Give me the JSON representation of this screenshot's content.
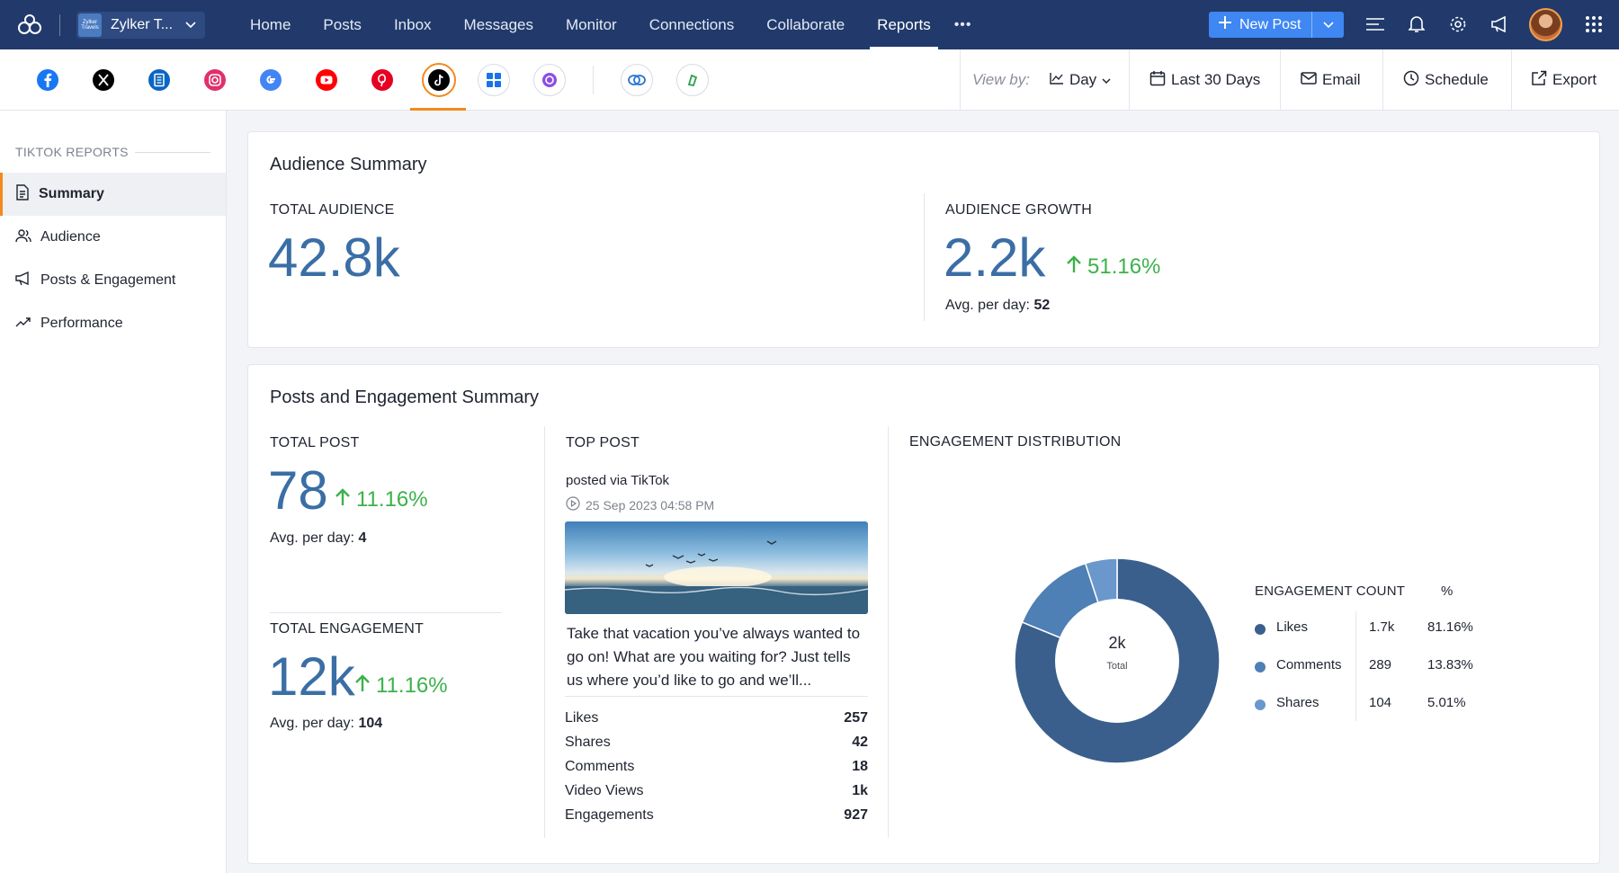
{
  "topbar": {
    "brand_name": "Zylker T...",
    "brand_logo_text": "Zylker Travels",
    "nav": [
      "Home",
      "Posts",
      "Inbox",
      "Messages",
      "Monitor",
      "Connections",
      "Collaborate",
      "Reports"
    ],
    "active_nav": "Reports",
    "new_post_label": "New Post"
  },
  "toolbar": {
    "view_by_label": "View by:",
    "view_by_value": "Day",
    "date_range": "Last 30 Days",
    "email": "Email",
    "schedule": "Schedule",
    "export": "Export"
  },
  "networks": [
    "facebook",
    "x",
    "linkedin-page",
    "instagram",
    "google-business",
    "youtube",
    "pinterest",
    "tiktok",
    "mastodon",
    "threads",
    "zoho-connect",
    "zoho-social-hub"
  ],
  "active_network": "tiktok",
  "sidebar": {
    "heading": "TIKTOK REPORTS",
    "items": [
      {
        "label": "Summary",
        "icon": "document-icon"
      },
      {
        "label": "Audience",
        "icon": "users-icon"
      },
      {
        "label": "Posts & Engagement",
        "icon": "megaphone-icon"
      },
      {
        "label": "Performance",
        "icon": "trend-icon"
      }
    ]
  },
  "audience": {
    "title": "Audience Summary",
    "total_label": "TOTAL AUDIENCE",
    "total_value": "42.8k",
    "growth_label": "AUDIENCE GROWTH",
    "growth_value": "2.2k",
    "growth_delta": "51.16%",
    "avg_label": "Avg. per day:",
    "avg_value": "52"
  },
  "engagement": {
    "title": "Posts and Engagement Summary",
    "total_post_label": "TOTAL POST",
    "total_post_value": "78",
    "total_post_delta": "11.16%",
    "post_avg_label": "Avg. per day:",
    "post_avg_value": "4",
    "total_eng_label": "TOTAL ENGAGEMENT",
    "total_eng_value": "12k",
    "total_eng_delta": "11.16%",
    "eng_avg_label": "Avg. per day:",
    "eng_avg_value": "104",
    "top_post": {
      "label": "TOP POST",
      "posted_via": "posted via TikTok",
      "date": "25 Sep 2023 04:58 PM",
      "text": "Take that vacation you’ve always wanted to go on! What are you waiting for? Just tells us where you’d like to go and we’ll...",
      "stats": [
        {
          "label": "Likes",
          "value": "257"
        },
        {
          "label": "Shares",
          "value": "42"
        },
        {
          "label": "Comments",
          "value": "18"
        },
        {
          "label": "Video Views",
          "value": "1k"
        },
        {
          "label": "Engagements",
          "value": "927"
        }
      ]
    },
    "distribution": {
      "label": "ENGAGEMENT DISTRIBUTION",
      "center_value": "2k",
      "center_label": "Total",
      "col_count": "ENGAGEMENT COUNT",
      "col_pct": "%",
      "rows": [
        {
          "name": "Likes",
          "count": "1.7k",
          "pct": "81.16%"
        },
        {
          "name": "Comments",
          "count": "289",
          "pct": "13.83%"
        },
        {
          "name": "Shares",
          "count": "104",
          "pct": "5.01%"
        }
      ]
    }
  },
  "chart_data": {
    "type": "pie",
    "categories": [
      "Likes",
      "Comments",
      "Shares"
    ],
    "values": [
      81.16,
      13.83,
      5.01
    ],
    "colors": [
      "#3a5f8c",
      "#4e7fb5",
      "#6a98cc"
    ],
    "title": ""
  }
}
